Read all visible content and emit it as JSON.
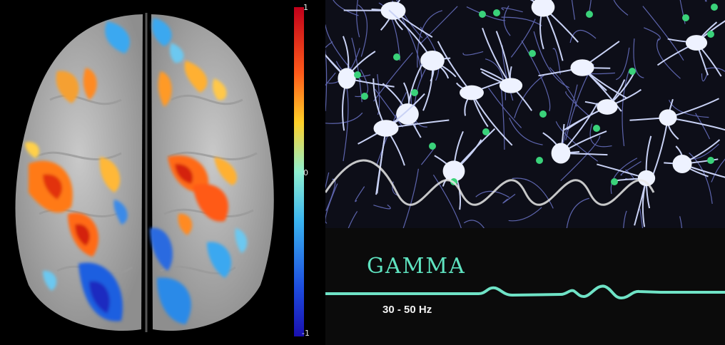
{
  "colorbar": {
    "max_label": "1",
    "mid_label": "0",
    "min_label": "-1",
    "gradient_colors": [
      "#d7191c",
      "#fdae61",
      "#ffff8c",
      "#6fe3e0",
      "#2c7bb6",
      "#1a1aa8"
    ]
  },
  "gamma": {
    "title": "GAMMA",
    "frequency": "30 - 50 Hz",
    "wave_color": "#6fe3c6"
  },
  "neurons": {
    "dendrite_color": "#6b74c8",
    "body_color": "#eef2ff",
    "marker_color": "#3ad27a"
  }
}
